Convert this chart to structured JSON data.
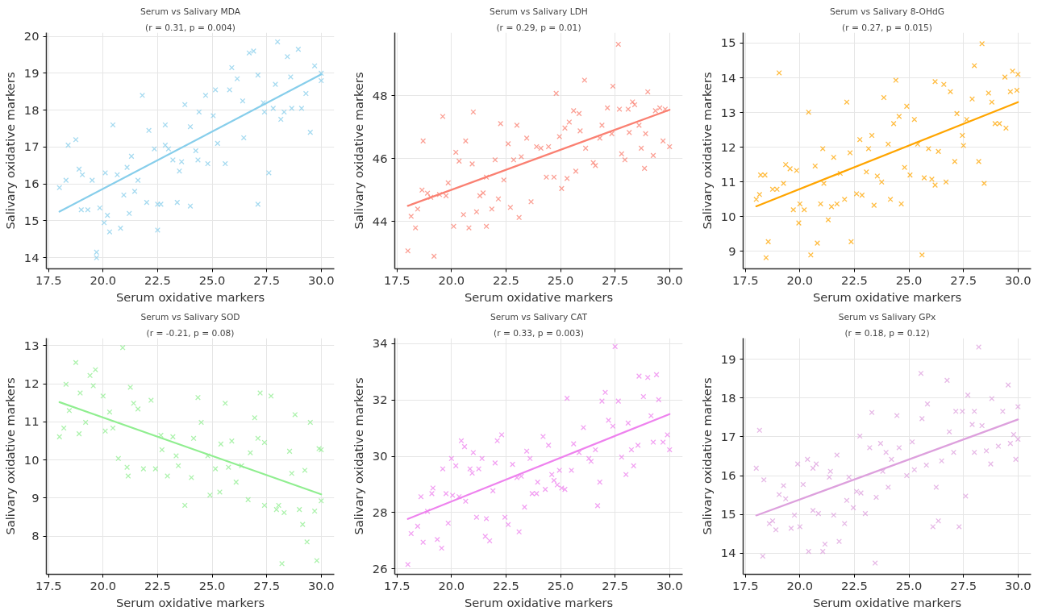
{
  "chart_data": [
    {
      "type": "scatter",
      "title": "Serum vs Salivary MDA",
      "subtitle": "(r = 0.31, p = 0.004)",
      "xlabel": "Serum oxidative markers",
      "ylabel": "Salivary oxidative markers",
      "xlim": [
        17.4,
        30.6
      ],
      "ylim": [
        13.7,
        20.1
      ],
      "xticks": [
        17.5,
        {
          "value": 20,
          "label": "20.0"
        },
        22.5,
        {
          "value": 25,
          "label": "25.0"
        },
        27.5,
        {
          "value": 30,
          "label": "30.0"
        }
      ],
      "yticks": [
        14,
        15,
        16,
        17,
        18,
        19,
        20
      ],
      "grid": true,
      "marker": "cross",
      "series": [
        {
          "color": "#87ceeb",
          "x": [
            18.0,
            18.3,
            18.4,
            18.75,
            18.9,
            19.05,
            19.0,
            19.3,
            19.5,
            19.7,
            19.7,
            19.85,
            20.05,
            20.2,
            20.1,
            20.3,
            20.45,
            20.65,
            20.8,
            20.95,
            21.1,
            21.2,
            21.3,
            21.45,
            21.6,
            21.8,
            22.0,
            22.1,
            22.35,
            22.5,
            22.65,
            22.5,
            22.85,
            22.85,
            23.0,
            23.2,
            23.4,
            23.5,
            23.6,
            23.75,
            24.0,
            24.0,
            24.25,
            24.35,
            24.4,
            24.7,
            24.8,
            25.05,
            25.15,
            25.25,
            25.6,
            25.8,
            25.9,
            26.15,
            26.4,
            26.45,
            26.7,
            26.9,
            27.1,
            27.1,
            27.35,
            27.4,
            27.6,
            27.8,
            27.9,
            28.0,
            28.15,
            28.3,
            28.45,
            28.6,
            28.65,
            28.95,
            29.1,
            29.3,
            29.5,
            29.7,
            30.0,
            30.0
          ],
          "values": [
            15.9,
            16.1,
            17.05,
            17.2,
            16.4,
            16.25,
            15.3,
            15.3,
            16.1,
            14.0,
            14.15,
            15.35,
            14.95,
            15.15,
            16.3,
            14.7,
            17.6,
            16.25,
            14.8,
            15.7,
            16.45,
            15.2,
            16.75,
            15.8,
            16.1,
            18.4,
            15.5,
            17.45,
            16.95,
            15.45,
            15.45,
            14.75,
            17.6,
            17.05,
            16.95,
            16.65,
            15.5,
            16.35,
            16.6,
            18.15,
            17.55,
            15.4,
            16.9,
            16.65,
            17.95,
            18.4,
            16.55,
            17.85,
            18.55,
            17.1,
            16.55,
            18.55,
            19.15,
            18.85,
            18.25,
            17.25,
            19.55,
            19.6,
            15.45,
            18.95,
            18.2,
            17.95,
            16.3,
            18.05,
            18.7,
            19.85,
            17.75,
            17.95,
            19.45,
            18.9,
            18.05,
            19.65,
            18.05,
            18.45,
            17.4,
            19.2,
            19.0,
            18.8
          ]
        },
        {
          "type": "line",
          "marker": "none",
          "color": "#87ceeb",
          "x": [
            18,
            30
          ],
          "values": [
            15.25,
            18.97
          ]
        }
      ]
    },
    {
      "type": "scatter",
      "title": "Serum vs Salivary LDH",
      "subtitle": "(r = 0.29, p = 0.01)",
      "xlabel": "Serum oxidative markers",
      "ylabel": "Salivary oxidative markers",
      "xlim": [
        17.4,
        30.6
      ],
      "ylim": [
        42.5,
        50.0
      ],
      "xticks": [
        17.5,
        {
          "value": 20,
          "label": "20.0"
        },
        22.5,
        {
          "value": 25,
          "label": "25.0"
        },
        27.5,
        {
          "value": 30,
          "label": "30.0"
        }
      ],
      "yticks": [
        44,
        46,
        48
      ],
      "grid": true,
      "marker": "cross",
      "series": [
        {
          "color": "#fa8072",
          "x": [
            18.0,
            18.15,
            18.35,
            18.45,
            18.7,
            18.65,
            18.9,
            19.05,
            19.2,
            19.45,
            19.6,
            19.75,
            19.85,
            20.1,
            20.2,
            20.35,
            20.55,
            20.65,
            20.8,
            20.95,
            21.0,
            21.15,
            21.3,
            21.45,
            21.6,
            21.6,
            21.85,
            22.0,
            22.15,
            22.25,
            22.4,
            22.6,
            22.7,
            22.85,
            23.0,
            23.1,
            23.2,
            23.45,
            23.65,
            23.9,
            24.1,
            24.35,
            24.45,
            24.7,
            24.8,
            24.95,
            25.05,
            25.2,
            25.3,
            25.4,
            25.6,
            25.7,
            25.85,
            25.9,
            26.1,
            26.15,
            26.5,
            26.6,
            26.8,
            26.9,
            27.15,
            27.35,
            27.4,
            27.65,
            27.7,
            27.8,
            27.95,
            28.1,
            28.3,
            28.15,
            28.4,
            28.6,
            28.7,
            28.85,
            28.9,
            29.0,
            29.25,
            29.35,
            29.55,
            29.7,
            29.8,
            30.0
          ],
          "values": [
            43.07,
            44.17,
            43.8,
            44.4,
            46.56,
            45.0,
            44.9,
            44.77,
            42.9,
            44.86,
            47.34,
            44.82,
            45.23,
            43.85,
            46.2,
            45.92,
            44.22,
            46.56,
            43.8,
            45.83,
            47.48,
            44.31,
            44.82,
            44.91,
            43.85,
            45.41,
            44.4,
            45.96,
            44.72,
            47.11,
            45.32,
            46.47,
            44.45,
            45.96,
            47.06,
            44.13,
            46.06,
            46.65,
            44.63,
            46.38,
            46.33,
            45.41,
            46.38,
            45.41,
            48.07,
            46.7,
            45.05,
            46.97,
            45.37,
            47.16,
            47.52,
            45.6,
            47.43,
            46.88,
            48.49,
            46.33,
            45.87,
            45.78,
            46.65,
            47.06,
            47.61,
            46.79,
            48.3,
            49.63,
            47.57,
            46.15,
            45.96,
            47.57,
            47.8,
            46.83,
            47.71,
            47.06,
            46.33,
            45.69,
            46.79,
            48.12,
            46.1,
            47.52,
            47.61,
            46.56,
            47.57,
            46.38
          ]
        },
        {
          "type": "line",
          "marker": "none",
          "color": "#fa8072",
          "x": [
            18,
            30
          ],
          "values": [
            44.5,
            47.55
          ]
        }
      ]
    },
    {
      "type": "scatter",
      "title": "Serum vs Salivary 8-OHdG",
      "subtitle": "(r = 0.27, p = 0.015)",
      "xlabel": "Serum oxidative markers",
      "ylabel": "Salivary oxidative markers",
      "xlim": [
        17.4,
        30.6
      ],
      "ylim": [
        8.5,
        15.3
      ],
      "xticks": [
        17.5,
        {
          "value": 20,
          "label": "20.0"
        },
        22.5,
        {
          "value": 25,
          "label": "25.0"
        },
        27.5,
        {
          "value": 30,
          "label": "30.0"
        }
      ],
      "yticks": [
        9,
        10,
        11,
        12,
        13,
        14,
        15
      ],
      "grid": true,
      "marker": "cross",
      "series": [
        {
          "color": "#ffa500",
          "x": [
            18.0,
            18.15,
            18.2,
            18.4,
            18.45,
            18.55,
            18.75,
            18.95,
            19.05,
            19.25,
            19.35,
            19.55,
            19.7,
            19.85,
            19.95,
            20.0,
            20.2,
            20.4,
            20.5,
            20.7,
            20.8,
            20.95,
            21.05,
            21.1,
            21.3,
            21.45,
            21.55,
            21.7,
            21.85,
            22.05,
            22.15,
            22.3,
            22.35,
            22.6,
            22.75,
            22.85,
            23.05,
            23.15,
            23.3,
            23.4,
            23.55,
            23.75,
            23.85,
            24.05,
            24.15,
            24.3,
            24.4,
            24.55,
            24.65,
            24.8,
            24.9,
            25.05,
            25.25,
            25.4,
            25.6,
            25.7,
            25.9,
            26.05,
            26.2,
            26.2,
            26.35,
            26.6,
            26.7,
            26.9,
            27.1,
            27.2,
            27.45,
            27.5,
            27.65,
            27.9,
            28.0,
            28.2,
            28.35,
            28.45,
            28.65,
            28.8,
            28.95,
            29.15,
            29.4,
            29.45,
            29.65,
            29.75,
            29.95,
            30.0
          ],
          "values": [
            10.5,
            10.64,
            11.2,
            11.2,
            8.82,
            9.28,
            10.79,
            10.79,
            14.14,
            10.96,
            11.5,
            11.38,
            10.2,
            11.33,
            9.82,
            10.37,
            10.2,
            13.01,
            8.9,
            11.46,
            9.24,
            10.37,
            11.96,
            10.96,
            9.91,
            10.29,
            11.71,
            10.37,
            11.25,
            10.5,
            13.3,
            11.84,
            9.28,
            10.66,
            12.22,
            10.62,
            11.29,
            11.96,
            12.34,
            10.33,
            11.17,
            11.0,
            13.43,
            12.09,
            10.5,
            12.68,
            13.93,
            12.89,
            10.37,
            11.42,
            13.18,
            11.2,
            12.8,
            12.09,
            8.9,
            11.12,
            11.96,
            11.08,
            10.91,
            13.89,
            11.88,
            13.81,
            11.0,
            13.6,
            11.59,
            12.97,
            12.34,
            12.05,
            12.8,
            13.39,
            14.35,
            11.59,
            14.98,
            10.96,
            13.56,
            13.3,
            12.68,
            12.68,
            14.02,
            12.55,
            13.6,
            14.19,
            13.64,
            14.1
          ]
        },
        {
          "type": "line",
          "marker": "none",
          "color": "#ffa500",
          "x": [
            18,
            30
          ],
          "values": [
            10.3,
            13.3
          ]
        }
      ]
    },
    {
      "type": "scatter",
      "title": "Serum vs Salivary SOD",
      "subtitle": "(r = -0.21, p = 0.08)",
      "xlabel": "Serum oxidative markers",
      "ylabel": "Salivary oxidative markers",
      "xlim": [
        17.4,
        30.6
      ],
      "ylim": [
        7.0,
        13.2
      ],
      "xticks": [
        17.5,
        {
          "value": 20,
          "label": "20.0"
        },
        22.5,
        {
          "value": 25,
          "label": "25.0"
        },
        27.5,
        {
          "value": 30,
          "label": "30.0"
        }
      ],
      "yticks": [
        8,
        9,
        10,
        11,
        12,
        13
      ],
      "grid": true,
      "marker": "cross",
      "series": [
        {
          "color": "#90ee90",
          "x": [
            18.0,
            18.2,
            18.3,
            18.45,
            18.75,
            18.9,
            18.95,
            19.2,
            19.4,
            19.65,
            19.55,
            20.0,
            20.1,
            20.3,
            20.45,
            20.7,
            20.9,
            21.1,
            21.15,
            21.25,
            21.4,
            21.6,
            21.85,
            22.2,
            22.4,
            22.65,
            22.7,
            22.95,
            23.2,
            23.35,
            23.45,
            23.75,
            24.05,
            24.15,
            24.35,
            24.5,
            24.8,
            24.9,
            25.15,
            25.35,
            25.4,
            25.6,
            25.75,
            25.9,
            26.1,
            26.35,
            26.65,
            26.75,
            26.95,
            27.1,
            27.2,
            27.4,
            27.4,
            27.7,
            27.95,
            28.05,
            28.2,
            28.3,
            28.55,
            28.65,
            28.8,
            29.0,
            29.15,
            29.25,
            29.35,
            29.5,
            29.7,
            29.8,
            29.9,
            30.0,
            30.0
          ],
          "values": [
            10.61,
            10.84,
            11.99,
            11.3,
            12.56,
            10.69,
            11.76,
            10.99,
            12.22,
            12.37,
            11.95,
            11.68,
            10.76,
            11.26,
            10.84,
            10.04,
            12.95,
            9.81,
            9.58,
            11.91,
            11.49,
            11.34,
            9.77,
            11.57,
            9.77,
            10.65,
            10.27,
            9.58,
            10.61,
            10.11,
            9.85,
            8.81,
            9.54,
            10.57,
            11.64,
            10.99,
            10.11,
            9.08,
            9.77,
            9.16,
            10.42,
            11.49,
            9.81,
            10.5,
            9.42,
            9.85,
            8.96,
            10.19,
            11.11,
            10.57,
            11.76,
            10.46,
            8.81,
            11.68,
            8.7,
            8.81,
            7.28,
            8.62,
            10.23,
            9.65,
            11.19,
            8.7,
            8.31,
            9.73,
            7.85,
            10.99,
            8.66,
            7.36,
            10.3,
            10.27,
            8.93
          ]
        },
        {
          "type": "line",
          "marker": "none",
          "color": "#90ee90",
          "x": [
            18,
            30
          ],
          "values": [
            11.52,
            9.1
          ]
        }
      ]
    },
    {
      "type": "scatter",
      "title": "Serum vs Salivary CAT",
      "subtitle": "(r = 0.33, p = 0.003)",
      "xlabel": "Serum oxidative markers",
      "ylabel": "Salivary oxidative markers",
      "xlim": [
        17.4,
        30.6
      ],
      "ylim": [
        25.8,
        34.2
      ],
      "xticks": [
        17.5,
        {
          "value": 20,
          "label": "20.0"
        },
        22.5,
        {
          "value": 25,
          "label": "25.0"
        },
        27.5,
        {
          "value": 30,
          "label": "30.0"
        }
      ],
      "yticks": [
        26,
        28,
        30,
        32,
        34
      ],
      "grid": true,
      "marker": "cross",
      "series": [
        {
          "color": "#ee82ee",
          "x": [
            18.0,
            18.15,
            18.45,
            18.6,
            18.7,
            18.9,
            19.15,
            19.1,
            19.35,
            19.55,
            19.6,
            19.75,
            19.85,
            20.0,
            20.2,
            20.05,
            20.35,
            20.45,
            20.6,
            20.65,
            20.85,
            20.95,
            21.0,
            21.15,
            21.25,
            21.4,
            21.55,
            21.6,
            21.75,
            21.9,
            22.0,
            22.1,
            22.3,
            22.45,
            22.6,
            22.8,
            23.0,
            23.1,
            23.2,
            23.35,
            23.45,
            23.6,
            23.7,
            23.9,
            23.95,
            24.2,
            24.3,
            24.45,
            24.6,
            24.7,
            24.85,
            24.95,
            25.05,
            25.2,
            25.3,
            25.5,
            25.6,
            25.85,
            26.05,
            26.3,
            26.4,
            26.6,
            26.7,
            26.8,
            26.9,
            27.05,
            27.2,
            27.4,
            27.5,
            27.65,
            27.8,
            28.0,
            28.1,
            28.25,
            28.35,
            28.55,
            28.6,
            28.8,
            29.0,
            29.15,
            29.25,
            29.4,
            29.5,
            29.7,
            29.9,
            30.0
          ],
          "values": [
            26.15,
            27.25,
            27.51,
            28.56,
            26.94,
            28.04,
            28.87,
            28.67,
            27.04,
            26.73,
            29.55,
            28.67,
            27.62,
            29.92,
            29.66,
            28.61,
            28.56,
            30.55,
            30.34,
            28.4,
            29.55,
            29.4,
            30.13,
            27.83,
            29.55,
            29.92,
            27.15,
            27.78,
            26.99,
            28.77,
            29.76,
            30.55,
            30.76,
            27.83,
            27.57,
            29.71,
            29.24,
            27.31,
            29.29,
            28.19,
            30.18,
            29.92,
            28.67,
            28.67,
            29.08,
            30.7,
            28.82,
            30.39,
            29.35,
            29.14,
            28.98,
            29.5,
            28.87,
            28.82,
            32.06,
            29.5,
            30.44,
            30.13,
            31.02,
            29.92,
            29.82,
            30.23,
            28.24,
            29.08,
            31.96,
            32.27,
            31.28,
            31.07,
            33.9,
            31.96,
            29.97,
            29.35,
            31.18,
            30.23,
            29.66,
            30.39,
            32.85,
            32.12,
            32.8,
            31.44,
            30.5,
            32.9,
            32.01,
            30.5,
            30.76,
            30.23
          ]
        },
        {
          "type": "line",
          "marker": "none",
          "color": "#ee82ee",
          "x": [
            18,
            30
          ],
          "values": [
            27.77,
            31.5
          ]
        }
      ]
    },
    {
      "type": "scatter",
      "title": "Serum vs Salivary GPx",
      "subtitle": "(r = 0.18, p = 0.12)",
      "xlabel": "Serum oxidative markers",
      "ylabel": "Salivary oxidative markers",
      "xlim": [
        17.4,
        30.6
      ],
      "ylim": [
        13.45,
        19.55
      ],
      "xticks": [
        17.5,
        {
          "value": 20,
          "label": "20.0"
        },
        22.5,
        {
          "value": 25,
          "label": "25.0"
        },
        27.5,
        {
          "value": 30,
          "label": "30.0"
        }
      ],
      "yticks": [
        14,
        15,
        16,
        17,
        18,
        19
      ],
      "grid": true,
      "marker": "cross",
      "series": [
        {
          "color": "#dda0dd",
          "x": [
            18.0,
            18.15,
            18.3,
            18.35,
            18.6,
            18.75,
            18.9,
            19.05,
            19.25,
            19.35,
            19.6,
            19.75,
            19.9,
            20.0,
            20.15,
            20.4,
            20.35,
            20.6,
            20.75,
            20.6,
            20.85,
            21.05,
            21.15,
            21.35,
            21.4,
            21.55,
            21.7,
            21.8,
            22.05,
            22.15,
            22.25,
            22.45,
            22.6,
            22.75,
            22.8,
            23.0,
            23.2,
            23.3,
            23.45,
            23.5,
            23.7,
            23.8,
            23.95,
            24.05,
            24.2,
            24.45,
            24.55,
            24.9,
            25.15,
            25.25,
            25.55,
            25.6,
            25.8,
            25.85,
            26.1,
            26.25,
            26.35,
            26.5,
            26.75,
            26.85,
            27.05,
            27.15,
            27.3,
            27.45,
            27.6,
            27.7,
            27.9,
            28.0,
            28.0,
            28.2,
            28.35,
            28.55,
            28.75,
            28.8,
            29.1,
            29.3,
            29.55,
            29.65,
            29.8,
            29.9,
            30.0,
            30.0
          ],
          "values": [
            16.19,
            17.17,
            13.92,
            15.89,
            14.76,
            14.83,
            14.6,
            15.51,
            15.74,
            15.4,
            14.64,
            14.98,
            16.3,
            14.68,
            15.77,
            14.04,
            16.42,
            16.19,
            16.3,
            15.1,
            15.02,
            14.04,
            14.23,
            15.96,
            16.11,
            14.98,
            16.53,
            14.3,
            14.76,
            15.36,
            15.96,
            15.17,
            15.59,
            17.02,
            15.55,
            15.02,
            16.72,
            17.63,
            13.74,
            15.44,
            16.83,
            16.11,
            16.6,
            15.7,
            16.42,
            17.55,
            16.72,
            16.0,
            16.87,
            16.15,
            18.64,
            17.47,
            16.27,
            17.85,
            14.68,
            15.7,
            14.83,
            16.38,
            18.46,
            17.13,
            16.6,
            17.66,
            14.68,
            17.66,
            15.47,
            18.08,
            17.32,
            17.66,
            16.6,
            19.32,
            17.29,
            16.64,
            16.3,
            17.99,
            16.76,
            17.66,
            18.34,
            16.83,
            17.06,
            16.42,
            16.94,
            17.78
          ]
        },
        {
          "type": "line",
          "marker": "none",
          "color": "#dda0dd",
          "x": [
            18,
            30
          ],
          "values": [
            14.97,
            17.45
          ]
        }
      ]
    }
  ]
}
